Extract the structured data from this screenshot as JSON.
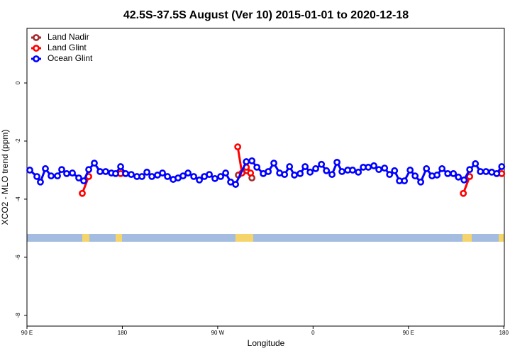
{
  "chart_data": {
    "type": "line",
    "title": "42.5S-37.5S August (Ver 10)   2015-01-01 to 2020-12-18",
    "x_label": "Longitude",
    "y_label": "XCO2 - MLO trend (ppm)",
    "xlim": [
      90,
      540.5
    ],
    "ylim": [
      -8.37,
      1.88
    ],
    "xticks": [
      {
        "value": 90,
        "label": "90 E"
      },
      180,
      {
        "value": 270,
        "label": "90 W"
      },
      {
        "value": 360,
        "label": "0"
      },
      {
        "value": 450,
        "label": "90 E"
      },
      {
        "value": 540,
        "label": "180"
      }
    ],
    "yticks": [
      0,
      -2,
      -4,
      -6,
      -8
    ],
    "legend": "top-left",
    "series": [
      {
        "name": "Land Nadir",
        "color": "#a52a2a",
        "x": [
          289.5,
          297.5,
          302.3
        ],
        "values": [
          -3.17,
          -3.02,
          -3.27
        ]
      },
      {
        "name": "Land Glint",
        "color": "#ff0000",
        "x": [
          142.2,
          148.3,
          null,
          178.4,
          null,
          288.9,
          292.9,
          297.0,
          301.0,
          null,
          501.8,
          507.8,
          null,
          538.0
        ],
        "values": [
          -3.8,
          -3.22,
          null,
          -3.12,
          null,
          -2.2,
          -3.1,
          -2.9,
          -3.1,
          null,
          -3.8,
          -3.22,
          null,
          -3.12
        ]
      },
      {
        "name": "Ocean Glint",
        "color": "#0000ff",
        "x": [
          92.7,
          99.4,
          102.7,
          107.4,
          112.8,
          118.8,
          122.8,
          127.5,
          132.9,
          138.9,
          143.6,
          148.3,
          153.6,
          159.0,
          164.3,
          169.7,
          173.7,
          178.4,
          183.1,
          188.4,
          193.8,
          198.5,
          203.2,
          207.9,
          213.2,
          217.9,
          222.6,
          228.0,
          232.6,
          237.3,
          242.0,
          247.4,
          252.7,
          257.4,
          262.1,
          267.4,
          272.8,
          277.5,
          282.2,
          286.9,
          297.0,
          302.3,
          307.0,
          313.0,
          317.7,
          323.0,
          328.4,
          333.1,
          337.8,
          342.4,
          347.8,
          352.5,
          357.2,
          362.5,
          367.9,
          372.6,
          377.9,
          382.6,
          387.3,
          392.7,
          397.3,
          402.7,
          407.4,
          412.1,
          417.4,
          422.1,
          427.5,
          432.2,
          436.9,
          441.5,
          446.2,
          451.6,
          456.3,
          461.6,
          467.0,
          472.3,
          477.0,
          481.7,
          487.1,
          492.4,
          497.1,
          502.5,
          507.8,
          513.2,
          517.9,
          523.2,
          528.6,
          533.3,
          538.0
        ],
        "values": [
          -3.0,
          -3.22,
          -3.41,
          -2.95,
          -3.2,
          -3.2,
          -2.98,
          -3.12,
          -3.1,
          -3.27,
          -3.37,
          -2.98,
          -2.76,
          -3.05,
          -3.05,
          -3.1,
          -3.12,
          -2.88,
          -3.12,
          -3.15,
          -3.22,
          -3.22,
          -3.07,
          -3.22,
          -3.17,
          -3.1,
          -3.22,
          -3.32,
          -3.27,
          -3.2,
          -3.1,
          -3.22,
          -3.34,
          -3.22,
          -3.15,
          -3.29,
          -3.22,
          -3.1,
          -3.41,
          -3.49,
          -2.71,
          -2.68,
          -2.9,
          -3.12,
          -3.05,
          -2.76,
          -3.1,
          -3.15,
          -2.88,
          -3.17,
          -3.12,
          -2.88,
          -3.07,
          -2.95,
          -2.8,
          -3.02,
          -3.15,
          -2.73,
          -3.05,
          -3.0,
          -3.0,
          -3.07,
          -2.9,
          -2.9,
          -2.85,
          -2.98,
          -2.93,
          -3.15,
          -3.02,
          -3.37,
          -3.37,
          -3.0,
          -3.2,
          -3.41,
          -2.95,
          -3.2,
          -3.17,
          -2.95,
          -3.12,
          -3.12,
          -3.24,
          -3.34,
          -2.98,
          -2.78,
          -3.05,
          -3.05,
          -3.07,
          -3.12,
          -2.88
        ]
      }
    ]
  }
}
